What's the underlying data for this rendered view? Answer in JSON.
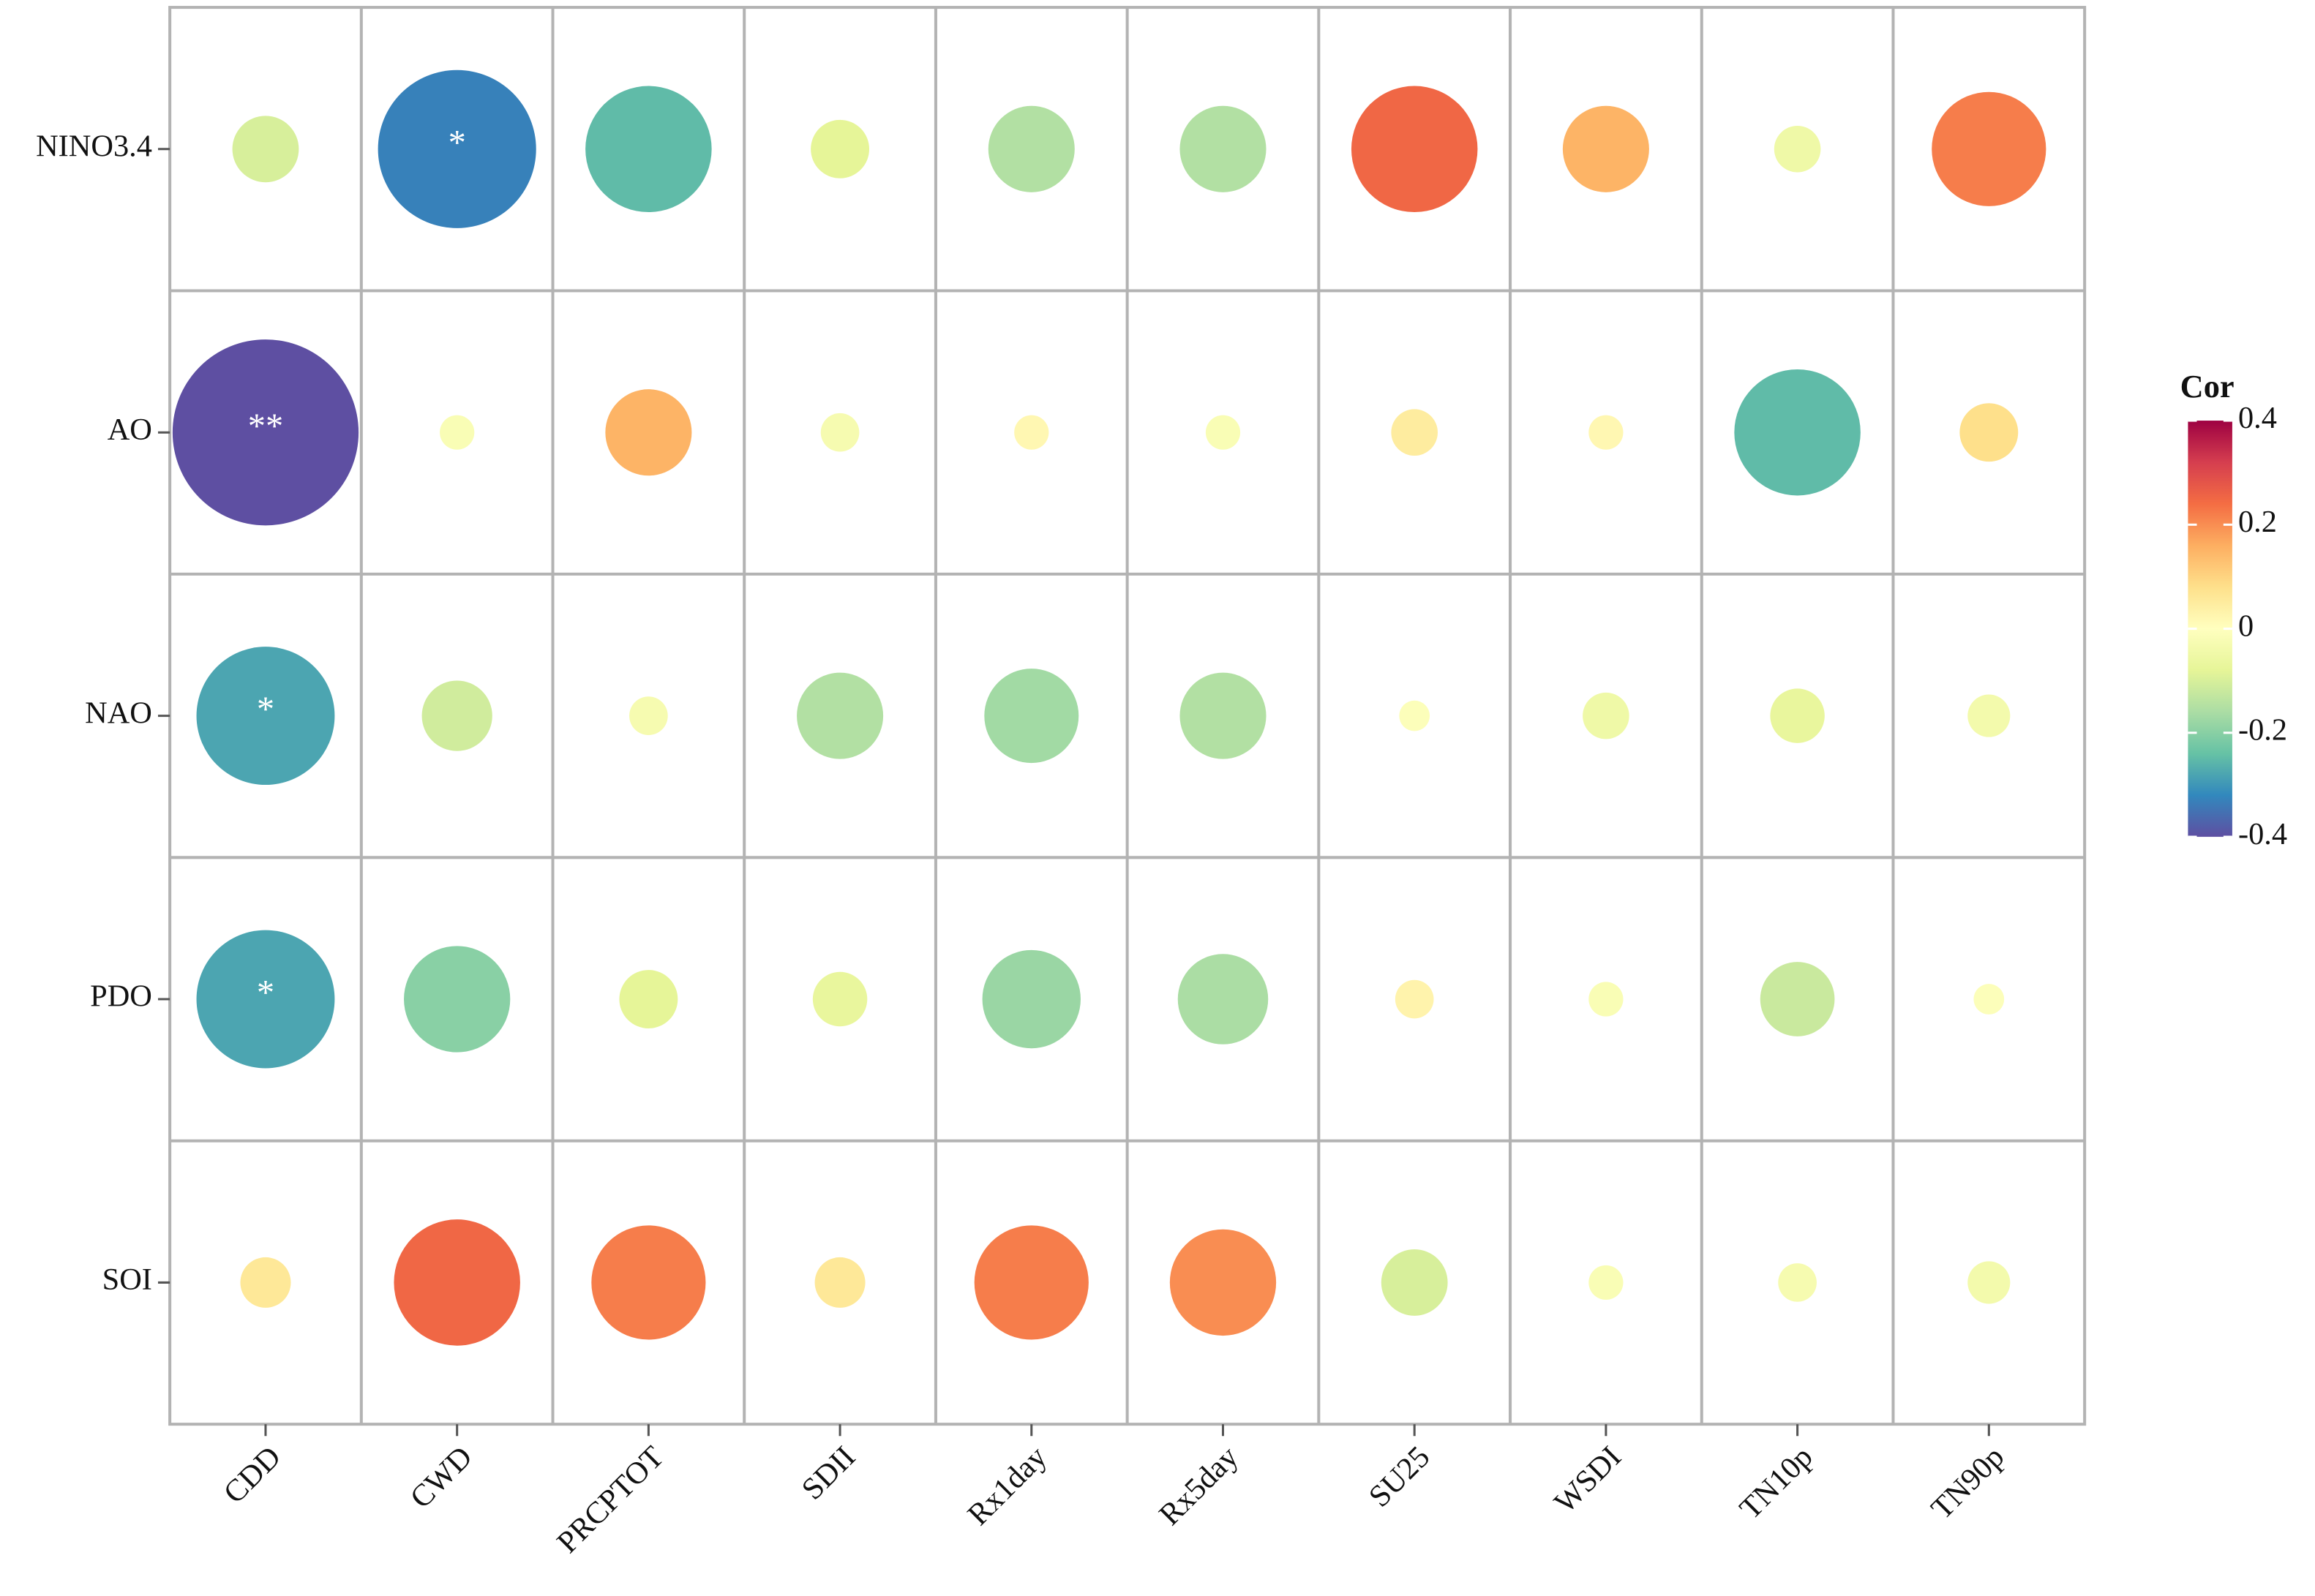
{
  "chart_data": {
    "type": "bubble-matrix",
    "columns": [
      "CDD",
      "CWD",
      "PRCPTOT",
      "SDII",
      "Rx1day",
      "Rx5day",
      "SU25",
      "WSDI",
      "TN10p",
      "TN90p"
    ],
    "rows": [
      "NINO3.4",
      "AO",
      "NAO",
      "PDO",
      "SOI"
    ],
    "values": [
      [
        -0.1,
        -0.33,
        -0.25,
        -0.08,
        -0.15,
        -0.15,
        0.25,
        0.15,
        -0.05,
        0.22
      ],
      [
        -0.4,
        -0.02,
        0.15,
        -0.03,
        0.02,
        -0.02,
        0.05,
        0.02,
        -0.25,
        0.08
      ],
      [
        -0.28,
        -0.11,
        -0.03,
        -0.15,
        -0.17,
        -0.15,
        -0.01,
        -0.05,
        -0.07,
        -0.04
      ],
      [
        -0.28,
        -0.2,
        -0.08,
        -0.07,
        -0.18,
        -0.16,
        0.03,
        -0.02,
        -0.12,
        -0.01
      ],
      [
        0.06,
        0.25,
        0.22,
        0.06,
        0.22,
        0.2,
        -0.1,
        -0.02,
        -0.03,
        -0.04
      ]
    ],
    "significance": [
      [
        null,
        "*",
        null,
        null,
        null,
        null,
        null,
        null,
        null,
        null
      ],
      [
        "**",
        null,
        null,
        null,
        null,
        null,
        null,
        null,
        null,
        null
      ],
      [
        "*",
        null,
        null,
        null,
        null,
        null,
        null,
        null,
        null,
        null
      ],
      [
        "*",
        null,
        null,
        null,
        null,
        null,
        null,
        null,
        null,
        null
      ],
      [
        null,
        null,
        null,
        null,
        null,
        null,
        null,
        null,
        null,
        null
      ]
    ],
    "colorbar_title": "Cor",
    "clim": [
      -0.4,
      0.4
    ],
    "cticks": [
      0.4,
      0.2,
      0,
      -0.2,
      -0.4
    ],
    "colorscale": [
      "#5e4fa2",
      "#3288bd",
      "#66c2a5",
      "#abdda4",
      "#e6f598",
      "#ffffbf",
      "#fee08b",
      "#fdae61",
      "#f46d43",
      "#d53e4f",
      "#9e0142"
    ],
    "grid": true
  }
}
